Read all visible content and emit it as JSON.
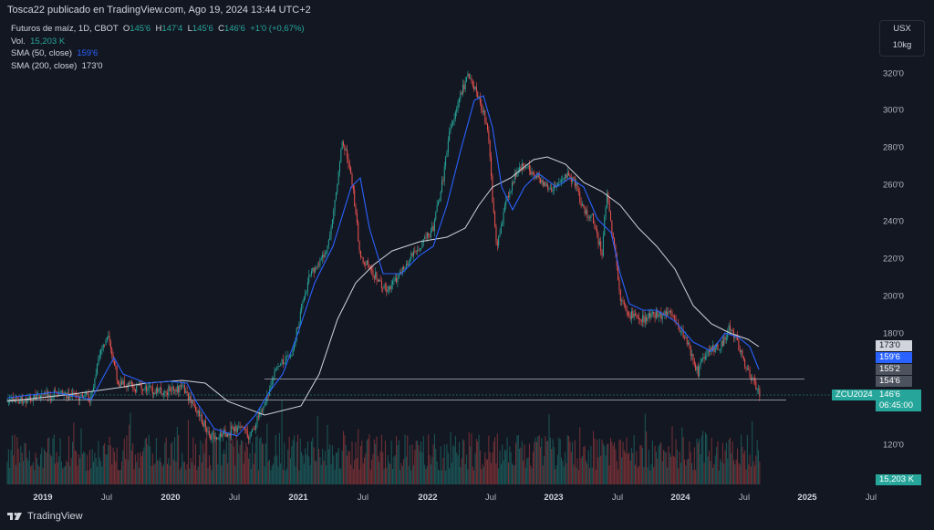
{
  "header": {
    "publisher": "Tosca22 publicado en TradingView.com, Ago 19, 2024 13:44 UTC+2"
  },
  "legend": {
    "symbol": "Futuros de maíz, 1D, CBOT",
    "o_label": "O",
    "o": "145'6",
    "h_label": "H",
    "h": "147'4",
    "l_label": "L",
    "l": "145'6",
    "c_label": "C",
    "c": "146'6",
    "change": "+1'0 (+0,67%)",
    "vol_label": "Vol.",
    "vol": "15,203 K",
    "sma50_label": "SMA (50, close)",
    "sma50": "159'6",
    "sma200_label": "SMA (200, close)",
    "sma200": "173'0"
  },
  "units": {
    "currency": "USX",
    "size": "10kg"
  },
  "price_tags": {
    "sma200": "173'0",
    "sma50": "159'6",
    "t1": "155'2",
    "t2": "154'6",
    "symbol": "ZCU2024",
    "last": "146'6",
    "countdown": "06:45:00",
    "volume": "15,203 K"
  },
  "y_axis": {
    "ticks": [
      "320'0",
      "300'0",
      "280'0",
      "260'0",
      "240'0",
      "220'0",
      "200'0",
      "180'0",
      "120'0"
    ]
  },
  "x_axis": {
    "ticks": [
      "2019",
      "Jul",
      "2020",
      "Jul",
      "2021",
      "Jul",
      "2022",
      "Jul",
      "2023",
      "Jul",
      "2024",
      "Jul",
      "2025",
      "Jul"
    ]
  },
  "colors": {
    "up": "#26a69a",
    "down": "#ef5350",
    "sma50": "#2962ff",
    "sma200": "#d1d4dc",
    "bg": "#131722"
  },
  "footer": {
    "brand": "TradingView"
  }
}
